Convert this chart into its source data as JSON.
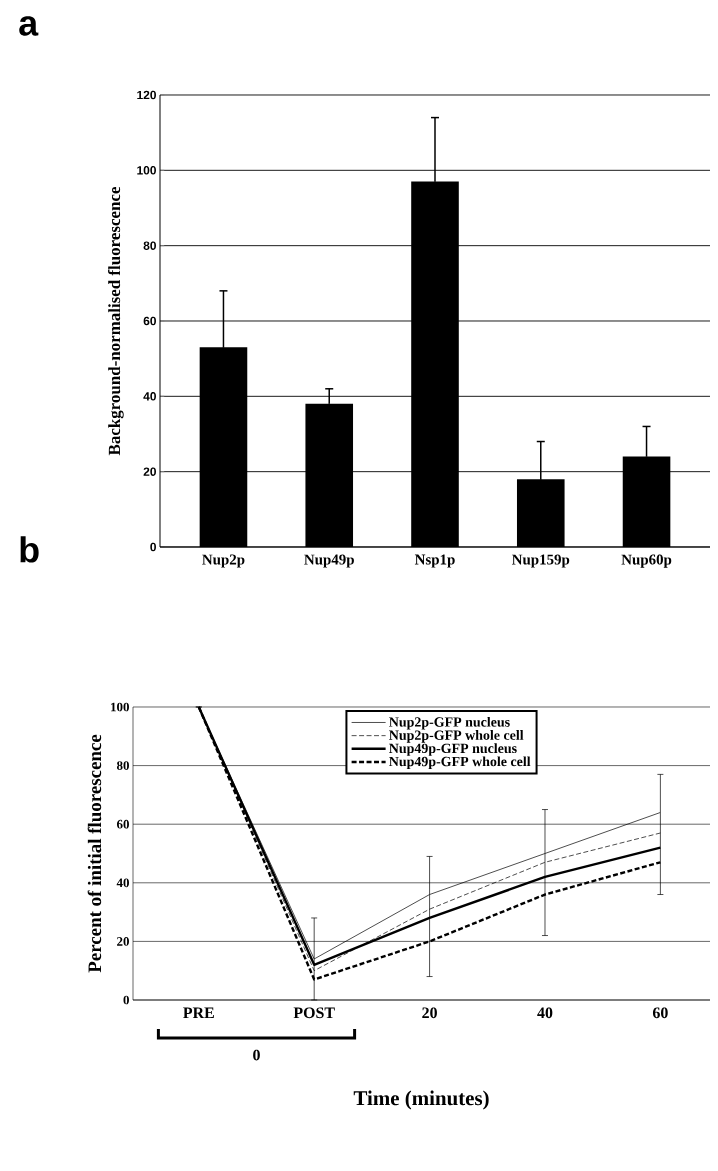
{
  "chart_data": [
    {
      "type": "bar",
      "title": "a",
      "ylabel": "Background-normalised fluorescence",
      "categories": [
        "Nup2p",
        "Nup49p",
        "Nsp1p",
        "Nup159p",
        "Nup60p"
      ],
      "values": [
        53,
        38,
        97,
        18,
        24
      ],
      "errors": [
        15,
        4,
        17,
        10,
        8
      ],
      "color": "#000000",
      "ylim": [
        0,
        120
      ],
      "yticks": [
        0,
        20,
        40,
        60,
        80,
        100,
        120
      ],
      "grid": "y"
    },
    {
      "type": "line",
      "title": "b",
      "ylabel": "Percent of initial fluorescence",
      "xlabel": "Time (minutes)",
      "categories": [
        "PRE",
        "POST",
        "20",
        "40",
        "60"
      ],
      "annotations": [
        "0"
      ],
      "ylim": [
        0,
        100
      ],
      "yticks": [
        0,
        20,
        40,
        60,
        80,
        100
      ],
      "grid": "y",
      "legend": "top",
      "series": [
        {
          "name": "Nup2p-GFP nucleus",
          "color": "#000000",
          "line_style": "solid",
          "values": [
            100,
            14,
            36,
            50,
            64
          ],
          "errors": [
            null,
            [
              0,
              28
            ],
            [
              8,
              49
            ],
            [
              22,
              65
            ],
            [
              36,
              77
            ]
          ]
        },
        {
          "name": "Nup2p-GFP whole cell",
          "color": "#000000",
          "line_style": "dashed",
          "values": [
            100,
            10,
            31,
            47,
            57
          ]
        },
        {
          "name": "Nup49p-GFP nucleus",
          "color": "#000000",
          "line_style": "solid",
          "values": [
            100,
            12,
            28,
            42,
            52
          ]
        },
        {
          "name": "Nup49p-GFP whole cell",
          "color": "#000000",
          "line_style": "dashed",
          "values": [
            100,
            7,
            20,
            36,
            47
          ]
        }
      ]
    }
  ]
}
